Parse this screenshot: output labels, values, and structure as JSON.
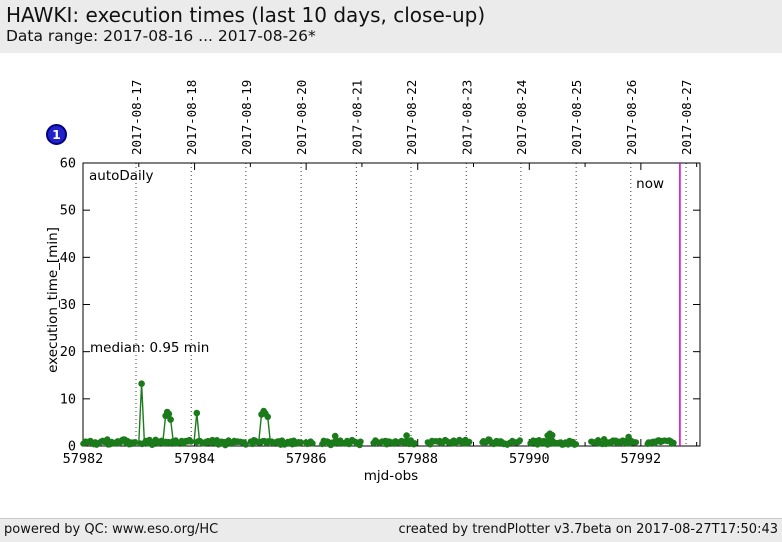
{
  "header": {
    "title": "HAWKI: execution times (last 10 days, close-up)",
    "subtitle": "Data range: 2017-08-16 ... 2017-08-26*"
  },
  "badge": {
    "label": "1",
    "color": "#2222cc"
  },
  "footer": {
    "left": "powered by QC: www.eso.org/HC",
    "right": "created by trendPlotter v3.7beta on 2017-08-27T17:50:43"
  },
  "chart_data": {
    "type": "scatter",
    "title": "HAWKI: execution times (last 10 days, close-up)",
    "xlabel": "mjd-obs",
    "ylabel": "execution_time_[min]",
    "xlim": [
      57982,
      57993.06
    ],
    "ylim": [
      0,
      60
    ],
    "grid": "vertical-dotted-date-lines",
    "x_major_ticks": [
      57982,
      57984,
      57986,
      57988,
      57990,
      57992
    ],
    "x_minor_ticks": [
      57983,
      57985,
      57987,
      57989,
      57991,
      57993
    ],
    "y_ticks": [
      0,
      10,
      20,
      30,
      40,
      50,
      60
    ],
    "top_dates": [
      {
        "label": "2017-08-17",
        "mjd": 57982.95
      },
      {
        "label": "2017-08-18",
        "mjd": 57983.94
      },
      {
        "label": "2017-08-19",
        "mjd": 57984.92
      },
      {
        "label": "2017-08-20",
        "mjd": 57985.91
      },
      {
        "label": "2017-08-21",
        "mjd": 57986.9
      },
      {
        "label": "2017-08-22",
        "mjd": 57987.88
      },
      {
        "label": "2017-08-23",
        "mjd": 57988.87
      },
      {
        "label": "2017-08-24",
        "mjd": 57989.85
      },
      {
        "label": "2017-08-25",
        "mjd": 57990.84
      },
      {
        "label": "2017-08-26",
        "mjd": 57991.82
      },
      {
        "label": "2017-08-27",
        "mjd": 57992.81
      }
    ],
    "labels": {
      "dataset": "autoDaily",
      "median": "median: 0.95 min",
      "now": "now"
    },
    "median_min": 0.95,
    "now_mjd": 57992.7,
    "colors": {
      "points": "#1b7b1b",
      "now": "#cc00cc",
      "grid": "#3a3a3a",
      "badge": "#2222cc"
    },
    "baseline_value_range": [
      0.1,
      1.8
    ],
    "baseline_segments": [
      {
        "x0": 57982.0,
        "x1": 57982.95
      },
      {
        "x0": 57983.02,
        "x1": 57983.95
      },
      {
        "x0": 57984.03,
        "x1": 57984.94
      },
      {
        "x0": 57985.0,
        "x1": 57985.93
      },
      {
        "x0": 57985.99,
        "x1": 57986.14
      },
      {
        "x0": 57986.28,
        "x1": 57987.0
      },
      {
        "x0": 57987.2,
        "x1": 57987.97
      },
      {
        "x0": 57988.17,
        "x1": 57988.95
      },
      {
        "x0": 57989.15,
        "x1": 57989.85
      },
      {
        "x0": 57990.01,
        "x1": 57990.85
      },
      {
        "x0": 57991.1,
        "x1": 57991.93
      },
      {
        "x0": 57992.11,
        "x1": 57992.6
      }
    ],
    "spike_groups": [
      {
        "points": [
          [
            57983.05,
            13.2
          ]
        ]
      },
      {
        "points": [
          [
            57983.48,
            6.4
          ],
          [
            57983.51,
            7.2
          ],
          [
            57983.54,
            6.8
          ],
          [
            57983.57,
            5.6
          ]
        ]
      },
      {
        "points": [
          [
            57984.04,
            7.0
          ]
        ]
      },
      {
        "points": [
          [
            57985.2,
            6.7
          ],
          [
            57985.24,
            7.4
          ],
          [
            57985.27,
            6.9
          ],
          [
            57985.31,
            6.2
          ]
        ]
      },
      {
        "points": [
          [
            57986.52,
            2.1
          ]
        ]
      },
      {
        "points": [
          [
            57987.8,
            2.2
          ]
        ]
      },
      {
        "points": [
          [
            57990.33,
            2.2
          ],
          [
            57990.37,
            2.6
          ],
          [
            57990.41,
            2.3
          ]
        ]
      },
      {
        "points": [
          [
            57991.78,
            1.9
          ]
        ]
      }
    ]
  }
}
